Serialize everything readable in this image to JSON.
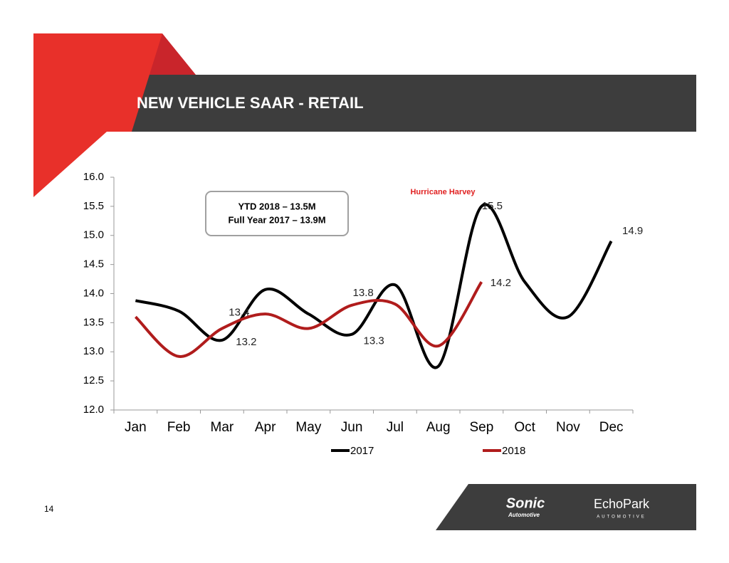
{
  "chart_data": {
    "type": "line",
    "title": "NEW VEHICLE SAAR - RETAIL",
    "categories": [
      "Jan",
      "Feb",
      "Mar",
      "Apr",
      "May",
      "Jun",
      "Jul",
      "Aug",
      "Sep",
      "Oct",
      "Nov",
      "Dec"
    ],
    "series": [
      {
        "name": "2017",
        "color": "#000000",
        "values": [
          13.88,
          13.7,
          13.2,
          14.07,
          13.65,
          13.3,
          14.15,
          12.75,
          15.5,
          14.2,
          13.6,
          14.9
        ],
        "value_labels": [
          null,
          null,
          "13.2",
          null,
          null,
          "13.3",
          null,
          null,
          "15.5",
          null,
          null,
          "14.9"
        ]
      },
      {
        "name": "2018",
        "color": "#b01c1c",
        "values": [
          13.6,
          12.92,
          13.4,
          13.65,
          13.4,
          13.8,
          13.82,
          13.1,
          14.2,
          null,
          null,
          null
        ],
        "value_labels": [
          null,
          null,
          "13.4",
          null,
          null,
          "13.8",
          null,
          null,
          "14.2",
          null,
          null,
          null
        ]
      }
    ],
    "ylim": [
      12.0,
      16.0
    ],
    "yticks": [
      {
        "value": 12.0,
        "label": "12.0"
      },
      {
        "value": 12.5,
        "label": "12.5"
      },
      {
        "value": 13.0,
        "label": "13.0"
      },
      {
        "value": 13.5,
        "label": "13.5"
      },
      {
        "value": 14.0,
        "label": "14.0"
      },
      {
        "value": 14.5,
        "label": "14.5"
      },
      {
        "value": 15.0,
        "label": "15.0"
      },
      {
        "value": 15.5,
        "label": "15.5"
      },
      {
        "value": 16.0,
        "label": "16.0"
      }
    ],
    "grid": false,
    "legend": "bottom",
    "annotations": [
      "Hurricane Harvey",
      "YTD 2018 – 13.5M",
      "Full Year 2017 – 13.9M"
    ]
  },
  "slide": {
    "page_number": "14",
    "logos": [
      "Sonic",
      "Automotive",
      "EchoPark",
      "AUTOMOTIVE"
    ]
  }
}
